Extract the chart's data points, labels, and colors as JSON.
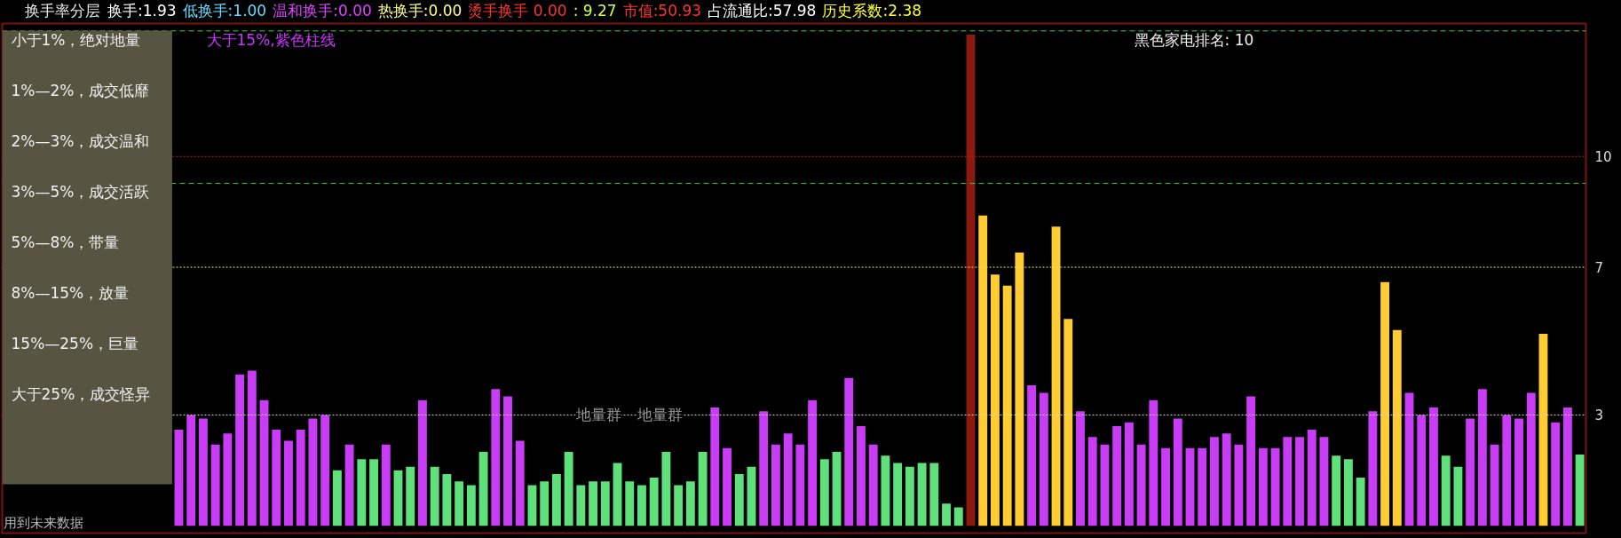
{
  "chart_data": {
    "type": "bar",
    "title": "换手率分层",
    "categories": [
      null,
      null,
      null,
      null,
      null,
      null,
      null,
      null,
      null,
      null,
      null,
      null,
      null,
      null,
      null,
      null,
      null,
      null,
      null,
      null,
      null,
      null,
      null,
      null,
      null,
      null,
      null,
      null,
      null,
      null,
      null,
      null,
      null,
      null,
      null,
      null,
      null,
      null,
      null,
      null,
      null,
      null,
      null,
      null,
      null,
      null,
      null,
      null,
      null,
      null,
      null,
      null,
      null,
      null,
      null,
      null,
      null,
      null,
      null,
      null,
      null,
      null,
      null,
      null,
      null,
      null,
      null,
      null,
      null,
      null,
      null,
      null,
      null,
      null,
      null,
      null,
      null,
      null,
      null,
      null,
      null,
      null,
      null,
      null,
      null,
      null,
      null,
      null,
      null,
      null,
      null,
      null,
      null,
      null,
      null,
      null,
      null,
      null,
      null,
      null,
      null,
      null,
      null,
      null,
      null,
      null,
      null,
      null,
      null,
      null,
      null,
      null,
      null,
      null,
      null,
      null,
      null,
      null,
      null,
      null,
      null,
      null,
      null,
      null,
      null,
      null,
      null,
      null,
      null,
      null
    ],
    "values": [
      null,
      null,
      null,
      null,
      null,
      null,
      null,
      null,
      null,
      null,
      null,
      null,
      null,
      null,
      2.6,
      3.0,
      2.9,
      2.2,
      2.5,
      4.1,
      4.2,
      3.4,
      2.6,
      2.3,
      2.6,
      2.9,
      3.0,
      1.5,
      2.2,
      1.8,
      1.8,
      2.2,
      1.5,
      1.6,
      3.4,
      1.6,
      1.4,
      1.2,
      1.1,
      2.0,
      3.7,
      3.5,
      2.3,
      1.1,
      1.2,
      1.4,
      2.0,
      1.1,
      1.2,
      1.2,
      1.7,
      1.2,
      1.1,
      1.3,
      2.0,
      1.1,
      1.2,
      2.0,
      3.2,
      2.1,
      1.4,
      1.6,
      3.1,
      2.2,
      2.5,
      2.2,
      3.4,
      1.8,
      2.0,
      4.0,
      2.7,
      2.2,
      1.9,
      1.7,
      1.6,
      1.7,
      1.7,
      0.6,
      0.5,
      13.3,
      8.4,
      6.8,
      6.5,
      7.4,
      3.8,
      3.6,
      8.1,
      5.6,
      3.1,
      2.4,
      2.2,
      2.7,
      2.8,
      2.2,
      3.4,
      2.1,
      2.9,
      2.1,
      2.1,
      2.4,
      2.5,
      2.2,
      3.5,
      2.1,
      2.1,
      2.4,
      2.4,
      2.6,
      2.4,
      1.9,
      1.8,
      1.3,
      3.1,
      6.6,
      5.3,
      3.6,
      3.0,
      3.2,
      1.9,
      1.6,
      2.9,
      3.7,
      2.2,
      3.0,
      2.9,
      3.6,
      5.2,
      2.8,
      3.2,
      1.93
    ],
    "colors": [
      null,
      null,
      null,
      null,
      null,
      null,
      null,
      null,
      null,
      null,
      null,
      null,
      null,
      null,
      "#c83cf5",
      "#c83cf5",
      "#c83cf5",
      "#c83cf5",
      "#c83cf5",
      "#c83cf5",
      "#c83cf5",
      "#c83cf5",
      "#c83cf5",
      "#c83cf5",
      "#c83cf5",
      "#c83cf5",
      "#c83cf5",
      "#5fe07a",
      "#c83cf5",
      "#5fe07a",
      "#5fe07a",
      "#c83cf5",
      "#5fe07a",
      "#5fe07a",
      "#c83cf5",
      "#5fe07a",
      "#5fe07a",
      "#5fe07a",
      "#5fe07a",
      "#5fe07a",
      "#c83cf5",
      "#c83cf5",
      "#c83cf5",
      "#5fe07a",
      "#5fe07a",
      "#5fe07a",
      "#5fe07a",
      "#5fe07a",
      "#5fe07a",
      "#5fe07a",
      "#5fe07a",
      "#5fe07a",
      "#5fe07a",
      "#5fe07a",
      "#5fe07a",
      "#5fe07a",
      "#5fe07a",
      "#5fe07a",
      "#c83cf5",
      "#c83cf5",
      "#5fe07a",
      "#5fe07a",
      "#c83cf5",
      "#c83cf5",
      "#c83cf5",
      "#c83cf5",
      "#c83cf5",
      "#5fe07a",
      "#5fe07a",
      "#c83cf5",
      "#c83cf5",
      "#c83cf5",
      "#5fe07a",
      "#5fe07a",
      "#5fe07a",
      "#5fe07a",
      "#5fe07a",
      "#5fe07a",
      "#5fe07a",
      "#8b1a10",
      "#ffcc33",
      "#ffcc33",
      "#ffcc33",
      "#ffcc33",
      "#c83cf5",
      "#c83cf5",
      "#ffcc33",
      "#ffcc33",
      "#c83cf5",
      "#c83cf5",
      "#c83cf5",
      "#c83cf5",
      "#c83cf5",
      "#c83cf5",
      "#c83cf5",
      "#c83cf5",
      "#c83cf5",
      "#c83cf5",
      "#c83cf5",
      "#c83cf5",
      "#c83cf5",
      "#c83cf5",
      "#c83cf5",
      "#c83cf5",
      "#c83cf5",
      "#c83cf5",
      "#c83cf5",
      "#c83cf5",
      "#c83cf5",
      "#5fe07a",
      "#5fe07a",
      "#5fe07a",
      "#c83cf5",
      "#ffcc33",
      "#ffcc33",
      "#c83cf5",
      "#c83cf5",
      "#c83cf5",
      "#5fe07a",
      "#5fe07a",
      "#c83cf5",
      "#c83cf5",
      "#c83cf5",
      "#c83cf5",
      "#c83cf5",
      "#c83cf5",
      "#ffcc33",
      "#c83cf5",
      "#c83cf5",
      "#5fe07a"
    ],
    "ylim": [
      -0.2,
      13.6
    ],
    "yticks": [
      3,
      7,
      10
    ],
    "tick_labels": "y",
    "ref_lines": [
      {
        "axis": "y",
        "value": 13.4,
        "color": "#44cc44",
        "line_style": "dashed"
      },
      {
        "axis": "y",
        "value": 10,
        "color": "#cc2222",
        "line_style": "dotted"
      },
      {
        "axis": "y",
        "value": 9.27,
        "color": "#44cc44",
        "line_style": "dashed"
      },
      {
        "axis": "y",
        "value": 7,
        "color": "#eeee77",
        "line_style": "dotted"
      },
      {
        "axis": "y",
        "value": 3,
        "color": "#dddddd",
        "line_style": "dotted"
      }
    ],
    "annotations": [
      "换手:1.93",
      "低换手:1.00",
      "温和换手:0.00",
      "热换手:0.00",
      "烫手换手 0.00",
      ": 9.27",
      "市值:50.93",
      "占流通比:57.98",
      "历史系数:2.38",
      "小于1%，绝对地量",
      "1%—2%，成交低靡",
      "2%—3%，成交温和",
      "3%—5%，成交活跃",
      "5%—8%，带量",
      "8%—15%，放量",
      "15%—25%，巨量",
      "大于25%，成交怪异",
      "大于15%,紫色柱线",
      "黑色家电排名: 10",
      "地量群",
      "地量群",
      "用到未来数据"
    ]
  }
}
